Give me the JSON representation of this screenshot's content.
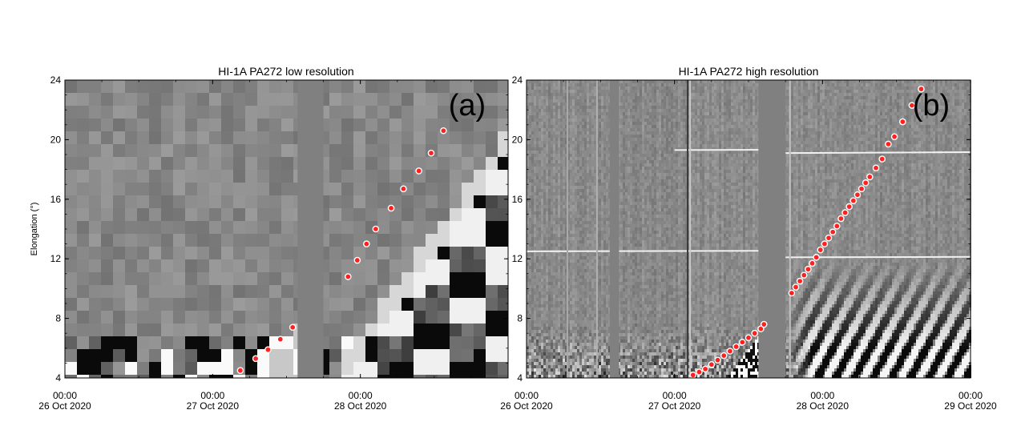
{
  "chart_data": [
    {
      "type": "heatmap",
      "panel_label": "(a)",
      "title": "HI-1A   PA272   low resolution",
      "ylabel": "Elongation (°)",
      "xlabel": "",
      "ylim": [
        4,
        24
      ],
      "xlim_hours": [
        0,
        72
      ],
      "yticks": [
        "4",
        "8",
        "12",
        "16",
        "20",
        "24"
      ],
      "xticks": [
        {
          "time": "00:00",
          "date": "26 Oct 2020"
        },
        {
          "time": "00:00",
          "date": "27 Oct 2020"
        },
        {
          "time": "00:00",
          "date": "28 Oct 2020"
        }
      ],
      "series": [
        {
          "marker": "red-dot",
          "points": [
            {
              "t": "27 Oct 04:30",
              "elong": 4.5
            },
            {
              "t": "27 Oct 07:00",
              "elong": 5.3
            },
            {
              "t": "27 Oct 09:00",
              "elong": 5.9
            },
            {
              "t": "27 Oct 11:00",
              "elong": 6.6
            },
            {
              "t": "27 Oct 13:00",
              "elong": 7.4
            },
            {
              "t": "27 Oct 22:00",
              "elong": 10.8
            },
            {
              "t": "27 Oct 23:30",
              "elong": 11.9
            },
            {
              "t": "28 Oct 01:00",
              "elong": 13.0
            },
            {
              "t": "28 Oct 02:30",
              "elong": 14.0
            },
            {
              "t": "28 Oct 05:00",
              "elong": 15.4
            },
            {
              "t": "28 Oct 07:00",
              "elong": 16.7
            },
            {
              "t": "28 Oct 09:30",
              "elong": 17.9
            },
            {
              "t": "28 Oct 11:30",
              "elong": 19.1
            },
            {
              "t": "28 Oct 13:30",
              "elong": 20.6
            }
          ]
        }
      ]
    },
    {
      "type": "heatmap",
      "panel_label": "(b)",
      "title": "HI-1A   PA272   high resolution",
      "ylabel": "",
      "xlabel": "",
      "ylim": [
        4,
        24
      ],
      "xlim_hours": [
        0,
        72
      ],
      "yticks": [
        "4",
        "8",
        "12",
        "16",
        "20",
        "24"
      ],
      "xticks": [
        {
          "time": "00:00",
          "date": "26 Oct 2020"
        },
        {
          "time": "00:00",
          "date": "27 Oct 2020"
        },
        {
          "time": "00:00",
          "date": "28 Oct 2020"
        },
        {
          "time": "00:00",
          "date": "29 Oct 2020"
        }
      ],
      "series": [
        {
          "marker": "red-dot",
          "points": [
            {
              "t": "27 Oct 03:00",
              "elong": 4.2
            },
            {
              "t": "27 Oct 04:00",
              "elong": 4.4
            },
            {
              "t": "27 Oct 05:00",
              "elong": 4.6
            },
            {
              "t": "27 Oct 06:00",
              "elong": 4.9
            },
            {
              "t": "27 Oct 07:00",
              "elong": 5.2
            },
            {
              "t": "27 Oct 08:00",
              "elong": 5.5
            },
            {
              "t": "27 Oct 09:00",
              "elong": 5.8
            },
            {
              "t": "27 Oct 10:00",
              "elong": 6.1
            },
            {
              "t": "27 Oct 11:00",
              "elong": 6.4
            },
            {
              "t": "27 Oct 12:00",
              "elong": 6.7
            },
            {
              "t": "27 Oct 13:00",
              "elong": 7.0
            },
            {
              "t": "27 Oct 14:00",
              "elong": 7.3
            },
            {
              "t": "27 Oct 14:30",
              "elong": 7.6
            },
            {
              "t": "27 Oct 19:00",
              "elong": 9.7
            },
            {
              "t": "27 Oct 19:40",
              "elong": 10.1
            },
            {
              "t": "27 Oct 20:20",
              "elong": 10.5
            },
            {
              "t": "27 Oct 21:00",
              "elong": 10.9
            },
            {
              "t": "27 Oct 21:40",
              "elong": 11.3
            },
            {
              "t": "27 Oct 22:20",
              "elong": 11.7
            },
            {
              "t": "27 Oct 23:00",
              "elong": 12.1
            },
            {
              "t": "27 Oct 23:40",
              "elong": 12.6
            },
            {
              "t": "28 Oct 00:20",
              "elong": 13.0
            },
            {
              "t": "28 Oct 01:00",
              "elong": 13.4
            },
            {
              "t": "28 Oct 01:40",
              "elong": 13.8
            },
            {
              "t": "28 Oct 02:20",
              "elong": 14.2
            },
            {
              "t": "28 Oct 03:00",
              "elong": 14.7
            },
            {
              "t": "28 Oct 03:40",
              "elong": 15.1
            },
            {
              "t": "28 Oct 04:20",
              "elong": 15.5
            },
            {
              "t": "28 Oct 05:00",
              "elong": 15.9
            },
            {
              "t": "28 Oct 05:40",
              "elong": 16.3
            },
            {
              "t": "28 Oct 06:20",
              "elong": 16.7
            },
            {
              "t": "28 Oct 07:00",
              "elong": 17.1
            },
            {
              "t": "28 Oct 07:40",
              "elong": 17.5
            },
            {
              "t": "28 Oct 08:40",
              "elong": 18.1
            },
            {
              "t": "28 Oct 09:40",
              "elong": 18.7
            },
            {
              "t": "28 Oct 10:40",
              "elong": 19.7
            },
            {
              "t": "28 Oct 11:40",
              "elong": 20.2
            },
            {
              "t": "28 Oct 13:00",
              "elong": 21.2
            },
            {
              "t": "28 Oct 14:30",
              "elong": 22.3
            },
            {
              "t": "28 Oct 16:00",
              "elong": 23.4
            }
          ]
        }
      ]
    }
  ],
  "colors": {
    "marker": "#ff2020",
    "marker_edge": "#ffffff",
    "gap": "#808080",
    "background_gray": "#8a8a8a"
  }
}
